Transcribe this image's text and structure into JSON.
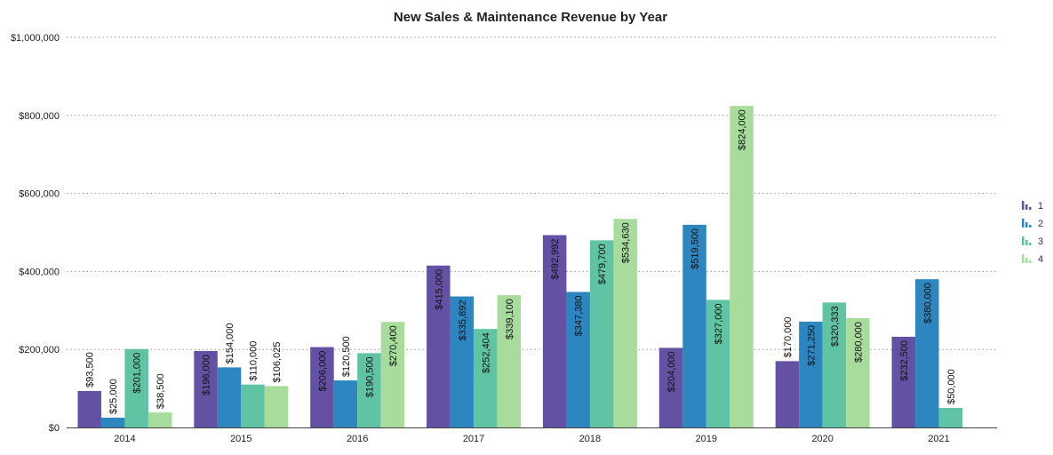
{
  "chart_data": {
    "type": "bar",
    "title": "New Sales & Maintenance Revenue by Year",
    "categories": [
      "2014",
      "2015",
      "2016",
      "2017",
      "2018",
      "2019",
      "2020",
      "2021"
    ],
    "series": [
      {
        "name": "1",
        "color": "#6451a3",
        "values": [
          93500,
          196000,
          206000,
          415000,
          492992,
          204000,
          170000,
          232500
        ],
        "labels": [
          "$93,500",
          "$196,000",
          "$206,000",
          "$415,000",
          "$492,992",
          "$204,000",
          "$170,000",
          "$232,500"
        ]
      },
      {
        "name": "2",
        "color": "#2e86c1",
        "values": [
          25000,
          154000,
          120500,
          335892,
          347380,
          519500,
          271250,
          380000
        ],
        "labels": [
          "$25,000",
          "$154,000",
          "$120,500",
          "$335,892",
          "$347,380",
          "$519,500",
          "$271,250",
          "$380,000"
        ]
      },
      {
        "name": "3",
        "color": "#5fc3a4",
        "values": [
          201000,
          110000,
          190500,
          252404,
          479700,
          327000,
          320333,
          50000
        ],
        "labels": [
          "$201,000",
          "$110,000",
          "$190,500",
          "$252,404",
          "$479,700",
          "$327,000",
          "$320,333",
          "$50,000"
        ]
      },
      {
        "name": "4",
        "color": "#a8dc9c",
        "values": [
          38500,
          106025,
          270400,
          339100,
          534630,
          824000,
          280000,
          null
        ],
        "labels": [
          "$38,500",
          "$106,025",
          "$270,400",
          "$339,100",
          "$534,630",
          "$824,000",
          "$280,000",
          ""
        ]
      }
    ],
    "ylim": [
      0,
      1000000
    ],
    "yticks": [
      0,
      200000,
      400000,
      600000,
      800000,
      1000000
    ],
    "ytick_labels": [
      "$0",
      "$200,000",
      "$400,000",
      "$600,000",
      "$800,000",
      "$1,000,000"
    ],
    "grid": true,
    "legend_position": "right"
  }
}
